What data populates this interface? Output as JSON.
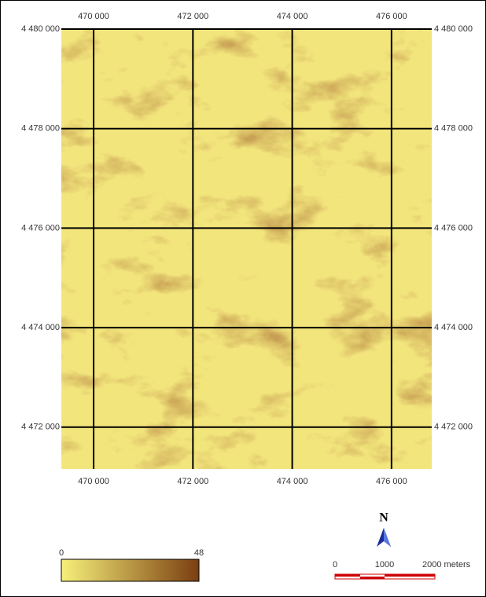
{
  "map": {
    "x_ticks": [
      {
        "value": 470000,
        "label": "470 000"
      },
      {
        "value": 472000,
        "label": "472 000"
      },
      {
        "value": 474000,
        "label": "474 000"
      },
      {
        "value": 476000,
        "label": "476 000"
      }
    ],
    "y_ticks": [
      {
        "value": 4480000,
        "label": "4 480 000"
      },
      {
        "value": 4478000,
        "label": "4 478 000"
      },
      {
        "value": 4476000,
        "label": "4 476 000"
      },
      {
        "value": 4474000,
        "label": "4 474 000"
      },
      {
        "value": 4472000,
        "label": "4 472 000"
      }
    ],
    "xlim": [
      469350,
      476810
    ],
    "ylim": [
      4471160,
      4480000
    ],
    "legend": {
      "min": 0,
      "max": 48,
      "colors": [
        "#f7f07a",
        "#7a3e10"
      ]
    },
    "north_arrow": "N",
    "scale_bar": {
      "labels": [
        "0",
        "1000",
        "2000 meters"
      ]
    }
  }
}
